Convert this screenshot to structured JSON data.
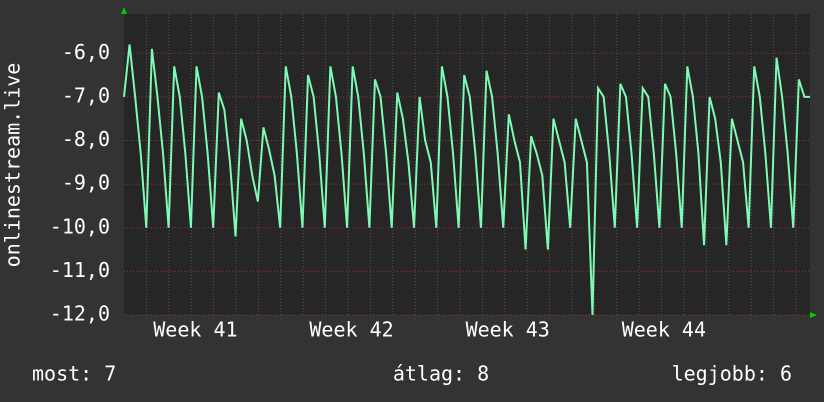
{
  "chart_data": {
    "type": "line",
    "y_label": "onlinestream.live",
    "xlim": [
      0,
      30.75
    ],
    "xticks": [
      {
        "value": 3.2,
        "label": "Week 41"
      },
      {
        "value": 10.2,
        "label": "Week 42"
      },
      {
        "value": 17.2,
        "label": "Week 43"
      },
      {
        "value": 24.2,
        "label": "Week 44"
      }
    ],
    "ylim": [
      -12,
      -5.1
    ],
    "yticks": [
      {
        "value": -12,
        "label": "-12,0"
      },
      {
        "value": -11,
        "label": "-11,0"
      },
      {
        "value": -10,
        "label": "-10,0"
      },
      {
        "value": -9,
        "label": "-9,0"
      },
      {
        "value": -8,
        "label": "-8,0"
      },
      {
        "value": -7,
        "label": "-7,0"
      },
      {
        "value": -6,
        "label": "-6,0"
      }
    ],
    "grid": true,
    "x": [
      0,
      0.25,
      0.5,
      0.75,
      1,
      1.25,
      1.5,
      1.75,
      2,
      2.25,
      2.5,
      2.75,
      3,
      3.25,
      3.5,
      3.75,
      4,
      4.25,
      4.5,
      4.75,
      5,
      5.25,
      5.5,
      5.75,
      6,
      6.25,
      6.5,
      6.75,
      7,
      7.25,
      7.5,
      7.75,
      8,
      8.25,
      8.5,
      8.75,
      9,
      9.25,
      9.5,
      9.75,
      10,
      10.25,
      10.5,
      10.75,
      11,
      11.25,
      11.5,
      11.75,
      12,
      12.25,
      12.5,
      12.75,
      13,
      13.25,
      13.5,
      13.75,
      14,
      14.25,
      14.5,
      14.75,
      15,
      15.25,
      15.5,
      15.75,
      16,
      16.25,
      16.5,
      16.75,
      17,
      17.25,
      17.5,
      17.75,
      18,
      18.25,
      18.5,
      18.75,
      19,
      19.25,
      19.5,
      19.75,
      20,
      20.25,
      20.5,
      20.75,
      21,
      21.25,
      21.5,
      21.75,
      22,
      22.25,
      22.5,
      22.75,
      23,
      23.25,
      23.5,
      23.75,
      24,
      24.25,
      24.5,
      24.75,
      25,
      25.25,
      25.5,
      25.75,
      26,
      26.25,
      26.5,
      26.75,
      27,
      27.25,
      27.5,
      27.75,
      28,
      28.25,
      28.5,
      28.75,
      29,
      29.25,
      29.5,
      29.75,
      30,
      30.25,
      30.5,
      30.75
    ],
    "series": [
      {
        "color": "#7dfab4",
        "values": [
          -7,
          -5.8,
          -7,
          -8.3,
          -10,
          -5.9,
          -7,
          -8.3,
          -10,
          -6.3,
          -7,
          -8.3,
          -10,
          -6.3,
          -7,
          -8.3,
          -10,
          -6.9,
          -7.3,
          -8.5,
          -10.2,
          -7.5,
          -8,
          -8.8,
          -9.4,
          -7.7,
          -8.2,
          -8.8,
          -10,
          -6.3,
          -7,
          -8.3,
          -10,
          -6.5,
          -7,
          -8.3,
          -10,
          -6.3,
          -7,
          -8.3,
          -10,
          -6.3,
          -7,
          -8.3,
          -10,
          -6.6,
          -7,
          -8.3,
          -10,
          -6.9,
          -7.5,
          -8.5,
          -10,
          -7,
          -8,
          -8.5,
          -10,
          -6.3,
          -7,
          -8.3,
          -10,
          -6.5,
          -7,
          -8.3,
          -10,
          -6.4,
          -7,
          -8.3,
          -10,
          -7.4,
          -8,
          -8.5,
          -10.5,
          -7.9,
          -8.3,
          -8.8,
          -10.5,
          -7.5,
          -8,
          -8.5,
          -10,
          -7.5,
          -8,
          -8.5,
          -12,
          -6.8,
          -7,
          -8.3,
          -10,
          -6.7,
          -7,
          -8.3,
          -10,
          -6.8,
          -7,
          -8.3,
          -10,
          -6.7,
          -7,
          -8.3,
          -10,
          -6.3,
          -7,
          -8.3,
          -10.4,
          -7,
          -7.5,
          -8.5,
          -10.4,
          -7.5,
          -8,
          -8.5,
          -10,
          -6.3,
          -7,
          -8.3,
          -10,
          -6.1,
          -7,
          -8.3,
          -10,
          -6.6,
          -7,
          -7
        ]
      }
    ],
    "footer": [
      "most: 7",
      "átlag: 8",
      "legjobb: 6"
    ]
  }
}
